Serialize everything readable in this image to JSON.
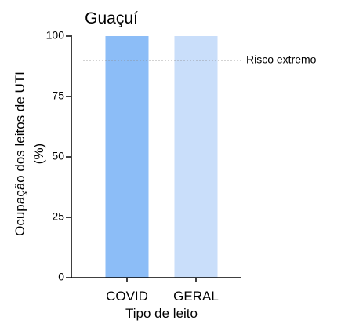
{
  "chart_data": {
    "type": "bar",
    "title": "Guaçuí",
    "xlabel": "Tipo de leito",
    "ylabel_line1": "Ocupação dos leitos de UTI",
    "ylabel_line2": "(%)",
    "categories": [
      "COVID",
      "GERAL"
    ],
    "values": [
      100,
      100
    ],
    "ylim": [
      0,
      100
    ],
    "yticks": [
      0,
      25,
      50,
      75,
      100
    ],
    "grid": false,
    "reference_line": {
      "label": "Risco extremo",
      "value": 90
    },
    "bar_colors": [
      "#8cbdf7",
      "#c9defa"
    ]
  }
}
